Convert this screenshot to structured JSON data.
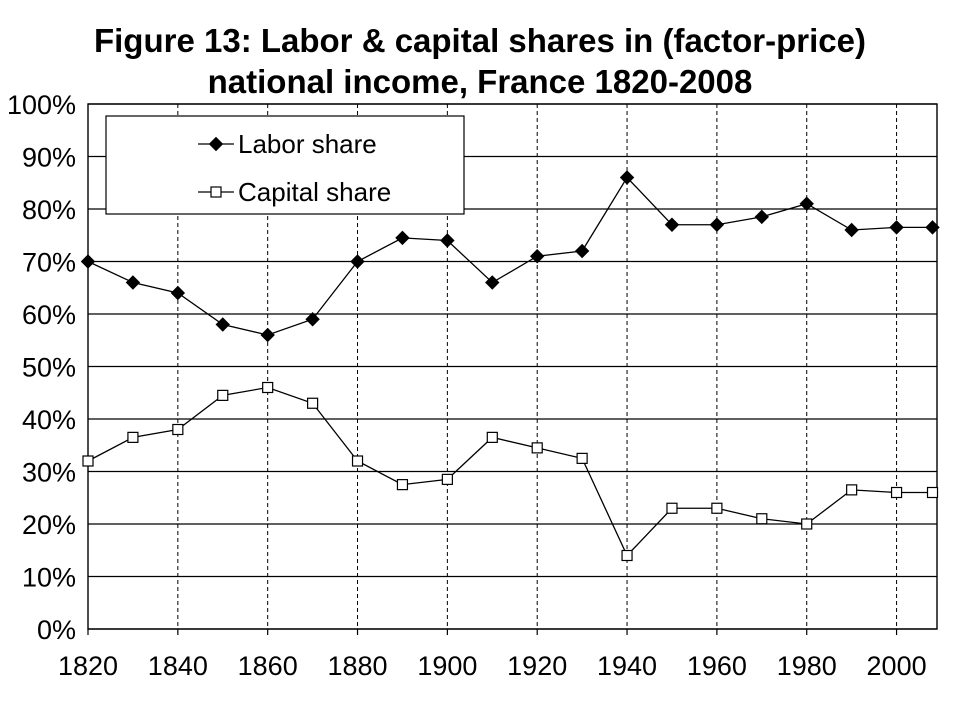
{
  "chart_data": {
    "type": "line",
    "title": "Figure 13: Labor & capital shares in (factor-price)",
    "subtitle": "national income, France 1820-2008",
    "x": [
      1820,
      1830,
      1840,
      1850,
      1860,
      1870,
      1880,
      1890,
      1900,
      1910,
      1920,
      1930,
      1940,
      1950,
      1960,
      1970,
      1980,
      1990,
      2000,
      2008
    ],
    "series": [
      {
        "name": "Labor share",
        "marker": "diamond-filled",
        "color": "#000000",
        "values": [
          0.7,
          0.66,
          0.64,
          0.58,
          0.56,
          0.59,
          0.7,
          0.745,
          0.74,
          0.66,
          0.71,
          0.72,
          0.86,
          0.77,
          0.77,
          0.785,
          0.81,
          0.76,
          0.765,
          0.765
        ]
      },
      {
        "name": "Capital share",
        "marker": "square-open",
        "color": "#000000",
        "values": [
          0.32,
          0.365,
          0.38,
          0.445,
          0.46,
          0.43,
          0.32,
          0.275,
          0.285,
          0.365,
          0.345,
          0.325,
          0.14,
          0.23,
          0.23,
          0.21,
          0.2,
          0.265,
          0.26,
          0.26
        ]
      }
    ],
    "xlim": [
      1820,
      2009
    ],
    "ylim": [
      0,
      1
    ],
    "xticks": [
      1820,
      1840,
      1860,
      1880,
      1900,
      1920,
      1940,
      1960,
      1980,
      2000
    ],
    "xtick_labels": [
      "1820",
      "1840",
      "1860",
      "1880",
      "1900",
      "1920",
      "1940",
      "1960",
      "1980",
      "2000"
    ],
    "yticks": [
      0,
      0.1,
      0.2,
      0.3,
      0.4,
      0.5,
      0.6,
      0.7,
      0.8,
      0.9,
      1.0
    ],
    "ytick_labels": [
      "0%",
      "10%",
      "20%",
      "30%",
      "40%",
      "50%",
      "60%",
      "70%",
      "80%",
      "90%",
      "100%"
    ],
    "grid": {
      "horizontal": "solid",
      "vertical": "dashed"
    },
    "legend": {
      "placement": "top-left"
    }
  }
}
